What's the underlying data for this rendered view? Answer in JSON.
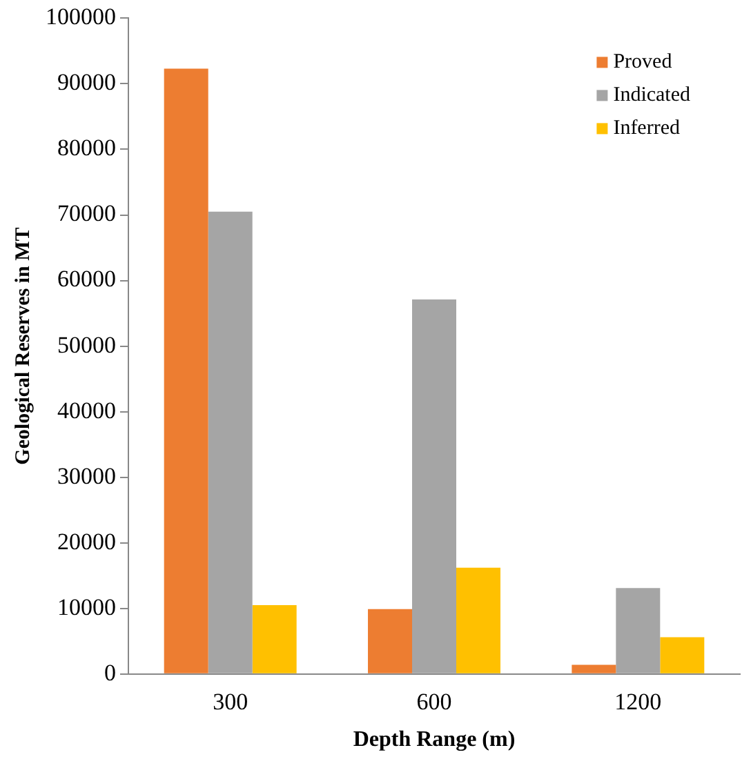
{
  "chart_data": {
    "type": "bar",
    "xlabel": "Depth Range (m)",
    "ylabel": "Geological Reserves in MT",
    "categories": [
      "300",
      "600",
      "1200"
    ],
    "series": [
      {
        "name": "Proved",
        "color": "#ed7d31",
        "values": [
          92300,
          9900,
          1400
        ]
      },
      {
        "name": "Indicated",
        "color": "#a5a5a5",
        "values": [
          70500,
          57100,
          13100
        ]
      },
      {
        "name": "Inferred",
        "color": "#ffc000",
        "values": [
          10500,
          16200,
          5600
        ]
      }
    ],
    "ylim": [
      0,
      100000
    ],
    "yticks": [
      0,
      10000,
      20000,
      30000,
      40000,
      50000,
      60000,
      70000,
      80000,
      90000,
      100000
    ],
    "grid": false,
    "legend": "top right"
  }
}
